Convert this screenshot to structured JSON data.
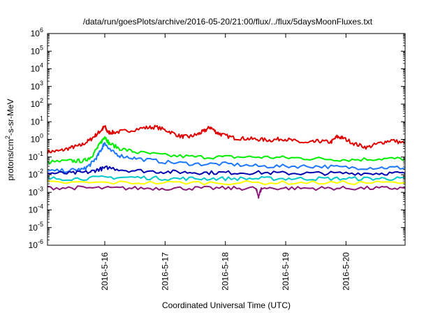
{
  "chart_data": {
    "type": "line",
    "title": "/data/run/goesPlots/archive/2016-05-20/21:00/flux/../flux/5daysMoonFluxes.txt",
    "xlabel": "Coordinated Universal Time (UTC)",
    "ylabel": {
      "pre": "protons/cm",
      "sup": "2",
      "post": "-s-sr-MeV"
    },
    "y_scale": "log",
    "ylim_exp": [
      -6,
      6
    ],
    "y_tick_exps": [
      -6,
      -5,
      -4,
      -3,
      -2,
      -1,
      0,
      1,
      2,
      3,
      4,
      5,
      6
    ],
    "xlim": [
      0,
      5.93
    ],
    "x_ticks": [
      {
        "x": 0.95,
        "label": "2016-5-16"
      },
      {
        "x": 1.95,
        "label": "2016-5-17"
      },
      {
        "x": 2.95,
        "label": "2016-5-18"
      },
      {
        "x": 3.95,
        "label": "2016-5-19"
      },
      {
        "x": 4.95,
        "label": "2016-5-20"
      }
    ],
    "grid": false,
    "series": [
      {
        "color": "#e00000",
        "x": [
          0,
          0.2,
          0.4,
          0.55,
          0.7,
          0.82,
          0.9,
          0.95,
          1.0,
          1.1,
          1.3,
          1.6,
          1.8,
          2.0,
          2.2,
          2.35,
          2.5,
          2.6,
          2.7,
          2.8,
          2.9,
          3.1,
          3.3,
          3.5,
          3.7,
          3.9,
          4.1,
          4.3,
          4.5,
          4.7,
          4.8,
          4.9,
          5.1,
          5.3,
          5.5,
          5.7,
          5.93
        ],
        "y": [
          0.2,
          0.22,
          0.35,
          0.45,
          0.9,
          2.0,
          3.5,
          5.5,
          2.5,
          2.5,
          3.0,
          4.5,
          5.0,
          3.0,
          1.5,
          1.4,
          2.0,
          3.0,
          5.0,
          2.5,
          1.8,
          1.2,
          1.1,
          1.0,
          0.9,
          1.1,
          0.8,
          0.6,
          0.8,
          0.7,
          1.4,
          1.2,
          0.55,
          0.35,
          0.6,
          0.9,
          0.6
        ]
      },
      {
        "color": "#00ee00",
        "x": [
          0,
          0.4,
          0.6,
          0.72,
          0.82,
          0.9,
          0.95,
          1.02,
          1.2,
          1.5,
          2.0,
          2.5,
          3.0,
          3.5,
          4.0,
          4.5,
          5.0,
          5.5,
          5.93
        ],
        "y": [
          0.05,
          0.06,
          0.06,
          0.1,
          0.3,
          0.8,
          1.5,
          0.6,
          0.3,
          0.18,
          0.12,
          0.1,
          0.1,
          0.1,
          0.09,
          0.08,
          0.07,
          0.08,
          0.08
        ]
      },
      {
        "color": "#1e78ff",
        "x": [
          0,
          0.4,
          0.6,
          0.72,
          0.82,
          0.9,
          0.95,
          1.02,
          1.2,
          1.5,
          2.0,
          2.5,
          3.0,
          3.5,
          4.0,
          4.5,
          5.0,
          5.5,
          5.93
        ],
        "y": [
          0.015,
          0.018,
          0.02,
          0.04,
          0.1,
          0.3,
          0.7,
          0.25,
          0.12,
          0.08,
          0.05,
          0.04,
          0.04,
          0.03,
          0.03,
          0.03,
          0.025,
          0.025,
          0.025
        ]
      },
      {
        "color": "#0000b0",
        "x": [
          0,
          0.4,
          0.7,
          0.85,
          1.0,
          1.3,
          1.8,
          2.2,
          2.6,
          3.0,
          3.5,
          4.0,
          4.5,
          5.0,
          5.5,
          5.93
        ],
        "y": [
          0.012,
          0.012,
          0.014,
          0.02,
          0.025,
          0.018,
          0.015,
          0.014,
          0.013,
          0.013,
          0.013,
          0.012,
          0.012,
          0.012,
          0.012,
          0.012
        ]
      },
      {
        "color": "#00c8c8",
        "x": [
          0,
          0.5,
          1.0,
          1.5,
          2.0,
          2.5,
          3.0,
          3.5,
          4.0,
          4.5,
          5.0,
          5.5,
          5.93
        ],
        "y": [
          0.006,
          0.006,
          0.007,
          0.007,
          0.006,
          0.006,
          0.006,
          0.006,
          0.006,
          0.006,
          0.006,
          0.006,
          0.006
        ]
      },
      {
        "color": "#ffff00",
        "x": [
          0,
          1.0,
          2.0,
          3.0,
          4.0,
          5.0,
          5.93
        ],
        "y": [
          0.0035,
          0.0035,
          0.0035,
          0.0035,
          0.0035,
          0.0035,
          0.0035
        ]
      },
      {
        "color": "#8b1a7a",
        "x": [
          0,
          0.5,
          1.0,
          1.5,
          2.0,
          2.5,
          3.0,
          3.45,
          3.5,
          3.55,
          4.0,
          4.5,
          5.0,
          5.5,
          5.93
        ],
        "y": [
          0.0018,
          0.0018,
          0.0017,
          0.0017,
          0.0017,
          0.0017,
          0.0017,
          0.0017,
          0.0006,
          0.0017,
          0.0017,
          0.0017,
          0.0017,
          0.0017,
          0.0017
        ]
      }
    ]
  }
}
